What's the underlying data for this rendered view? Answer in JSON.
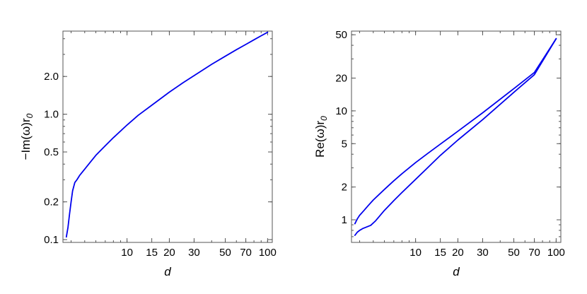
{
  "chart_data": [
    {
      "type": "line",
      "title": "",
      "xlabel": "d",
      "ylabel": {
        "main": "−Im(ω)r",
        "sub": "0"
      },
      "xscale": "log",
      "yscale": "log",
      "xlim": [
        3.5,
        108
      ],
      "ylim": [
        0.095,
        4.6
      ],
      "xticks": [
        {
          "value": 10,
          "label": "10"
        },
        {
          "value": 15,
          "label": "15"
        },
        {
          "value": 20,
          "label": "20"
        },
        {
          "value": 30,
          "label": "30"
        },
        {
          "value": 50,
          "label": "50"
        },
        {
          "value": 70,
          "label": "70"
        },
        {
          "value": 100,
          "label": "100"
        }
      ],
      "yticks": [
        {
          "value": 0.1,
          "label": "0.1"
        },
        {
          "value": 0.2,
          "label": "0.2"
        },
        {
          "value": 0.5,
          "label": "0.5"
        },
        {
          "value": 1.0,
          "label": "1.0"
        },
        {
          "value": 2.0,
          "label": "2.0"
        }
      ],
      "grid": false,
      "color": "#0000ee",
      "series": [
        {
          "x": [
            3.7,
            3.8,
            3.9,
            4.0,
            4.1,
            4.25,
            4.4,
            4.6,
            5,
            6,
            7,
            8,
            10,
            12,
            15,
            20,
            25,
            30,
            40,
            50,
            60,
            70,
            80,
            90,
            100
          ],
          "y": [
            0.105,
            0.125,
            0.16,
            0.2,
            0.245,
            0.285,
            0.3,
            0.325,
            0.365,
            0.47,
            0.56,
            0.65,
            0.82,
            0.98,
            1.18,
            1.5,
            1.78,
            2.03,
            2.5,
            2.9,
            3.27,
            3.6,
            3.92,
            4.22,
            4.5
          ]
        }
      ]
    },
    {
      "type": "line",
      "title": "",
      "xlabel": "d",
      "ylabel": {
        "main": "Re(ω)r",
        "sub": "0"
      },
      "xscale": "log",
      "yscale": "log",
      "xlim": [
        3.5,
        108
      ],
      "ylim": [
        0.62,
        54
      ],
      "xticks": [
        {
          "value": 10,
          "label": "10"
        },
        {
          "value": 15,
          "label": "15"
        },
        {
          "value": 20,
          "label": "20"
        },
        {
          "value": 30,
          "label": "30"
        },
        {
          "value": 50,
          "label": "50"
        },
        {
          "value": 70,
          "label": "70"
        },
        {
          "value": 100,
          "label": "100"
        }
      ],
      "yticks": [
        {
          "value": 1,
          "label": "1"
        },
        {
          "value": 2,
          "label": "2"
        },
        {
          "value": 5,
          "label": "5"
        },
        {
          "value": 10,
          "label": "10"
        },
        {
          "value": 20,
          "label": "20"
        },
        {
          "value": 50,
          "label": "50"
        }
      ],
      "grid": false,
      "color": "#0000ee",
      "series": [
        {
          "x": [
            3.7,
            3.85,
            4.0,
            4.3,
            4.6,
            5,
            6,
            7,
            8,
            10,
            12,
            15,
            20,
            30,
            50,
            70,
            100
          ],
          "y": [
            0.92,
            1.02,
            1.1,
            1.22,
            1.35,
            1.52,
            1.9,
            2.28,
            2.65,
            3.35,
            4.0,
            4.95,
            6.5,
            9.6,
            16.0,
            22.5,
            46
          ]
        },
        {
          "x": [
            3.7,
            3.85,
            4.0,
            4.2,
            4.5,
            4.8,
            5.2,
            6,
            7,
            8,
            10,
            12,
            15,
            20,
            30,
            50,
            70,
            100
          ],
          "y": [
            0.72,
            0.77,
            0.8,
            0.83,
            0.86,
            0.89,
            0.98,
            1.22,
            1.5,
            1.78,
            2.35,
            2.95,
            3.9,
            5.4,
            8.3,
            14.8,
            21.5,
            46
          ]
        }
      ]
    }
  ]
}
